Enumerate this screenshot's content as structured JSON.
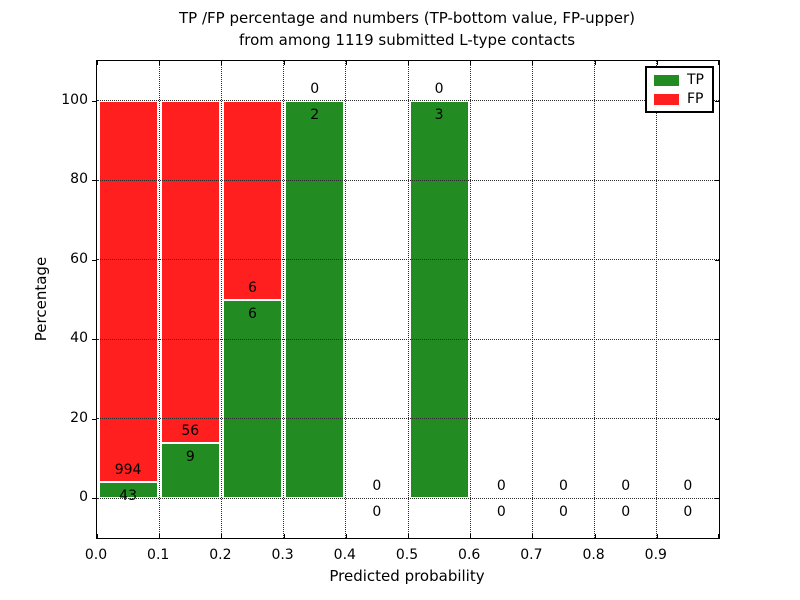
{
  "chart_data": {
    "type": "bar",
    "stacked": true,
    "title_line1": "TP /FP percentage and numbers (TP-bottom value, FP-upper)",
    "title_line2": "from among 1119 submitted L-type contacts",
    "xlabel": "Predicted probability",
    "ylabel": "Percentage",
    "total_submitted_contacts": 1119,
    "xlim": [
      0.0,
      1.0
    ],
    "ylim": [
      -10,
      110
    ],
    "bin_width": 0.1,
    "bin_starts": [
      0.0,
      0.1,
      0.2,
      0.3,
      0.4,
      0.5,
      0.6,
      0.7,
      0.8,
      0.9
    ],
    "xticks": [
      0.0,
      0.1,
      0.2,
      0.3,
      0.4,
      0.5,
      0.6,
      0.7,
      0.8,
      0.9
    ],
    "xtick_labels": [
      "0.0",
      "0.1",
      "0.2",
      "0.3",
      "0.4",
      "0.5",
      "0.6",
      "0.7",
      "0.8",
      "0.9"
    ],
    "yticks": [
      0,
      20,
      40,
      60,
      80,
      100
    ],
    "ytick_labels": [
      "0",
      "20",
      "40",
      "60",
      "80",
      "100"
    ],
    "grid": true,
    "legend_position": "upper right",
    "series": [
      {
        "name": "TP",
        "color": "#228B22",
        "counts": [
          43,
          9,
          6,
          2,
          0,
          3,
          0,
          0,
          0,
          0
        ],
        "percent": [
          4.147,
          13.846,
          50.0,
          100.0,
          0,
          100.0,
          0,
          0,
          0,
          0
        ]
      },
      {
        "name": "FP",
        "color": "#FF1F1F",
        "counts": [
          994,
          56,
          6,
          0,
          0,
          0,
          0,
          0,
          0,
          0
        ],
        "percent": [
          95.853,
          86.154,
          50.0,
          0,
          0,
          0,
          0,
          0,
          0,
          0
        ]
      }
    ]
  },
  "legend": {
    "items": [
      {
        "label": "TP",
        "color": "#228B22"
      },
      {
        "label": "FP",
        "color": "#FF1F1F"
      }
    ]
  },
  "colors": {
    "tp_green": "#228B22",
    "fp_red": "#FF1F1F",
    "axis": "#000000",
    "grid": "#2a2a2a",
    "background": "#ffffff",
    "text": "#000000"
  }
}
